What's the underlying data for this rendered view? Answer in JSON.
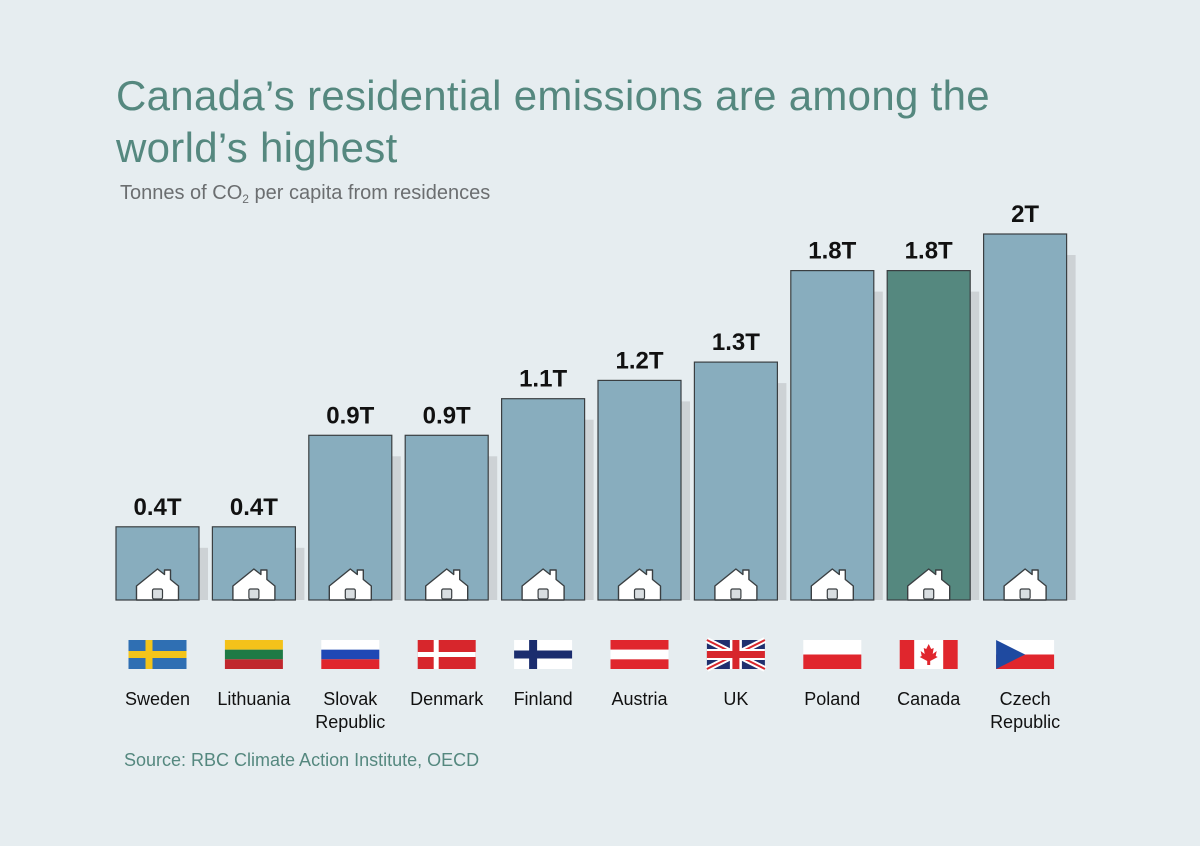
{
  "title": "Canada’s residential emissions are among the world’s highest",
  "subtitle": {
    "prefix": "Tonnes of CO",
    "subscript": "2",
    "suffix": " per capita from residences"
  },
  "source": "Source: RBC Climate Action Institute, OECD",
  "chart_data": {
    "type": "bar",
    "categories": [
      "Sweden",
      "Lithuania",
      "Slovak Republic",
      "Denmark",
      "Finland",
      "Austria",
      "UK",
      "Poland",
      "Canada",
      "Czech Republic"
    ],
    "category_labels": [
      [
        "Sweden"
      ],
      [
        "Lithuania"
      ],
      [
        "Slovak",
        "Republic"
      ],
      [
        "Denmark"
      ],
      [
        "Finland"
      ],
      [
        "Austria"
      ],
      [
        "UK"
      ],
      [
        "Poland"
      ],
      [
        "Canada"
      ],
      [
        "Czech",
        "Republic"
      ]
    ],
    "values": [
      0.4,
      0.4,
      0.9,
      0.9,
      1.1,
      1.2,
      1.3,
      1.8,
      1.8,
      2
    ],
    "value_labels": [
      "0.4T",
      "0.4T",
      "0.9T",
      "0.9T",
      "1.1T",
      "1.2T",
      "1.3T",
      "1.8T",
      "1.8T",
      "2T"
    ],
    "highlight": "Canada",
    "colors": {
      "bar": "#88adbe",
      "highlight_bar": "#55887f",
      "shadow": "#cdd2d5",
      "title": "#55887f"
    },
    "icons": [
      "house-icon",
      "flag-icon"
    ],
    "grid": false
  }
}
